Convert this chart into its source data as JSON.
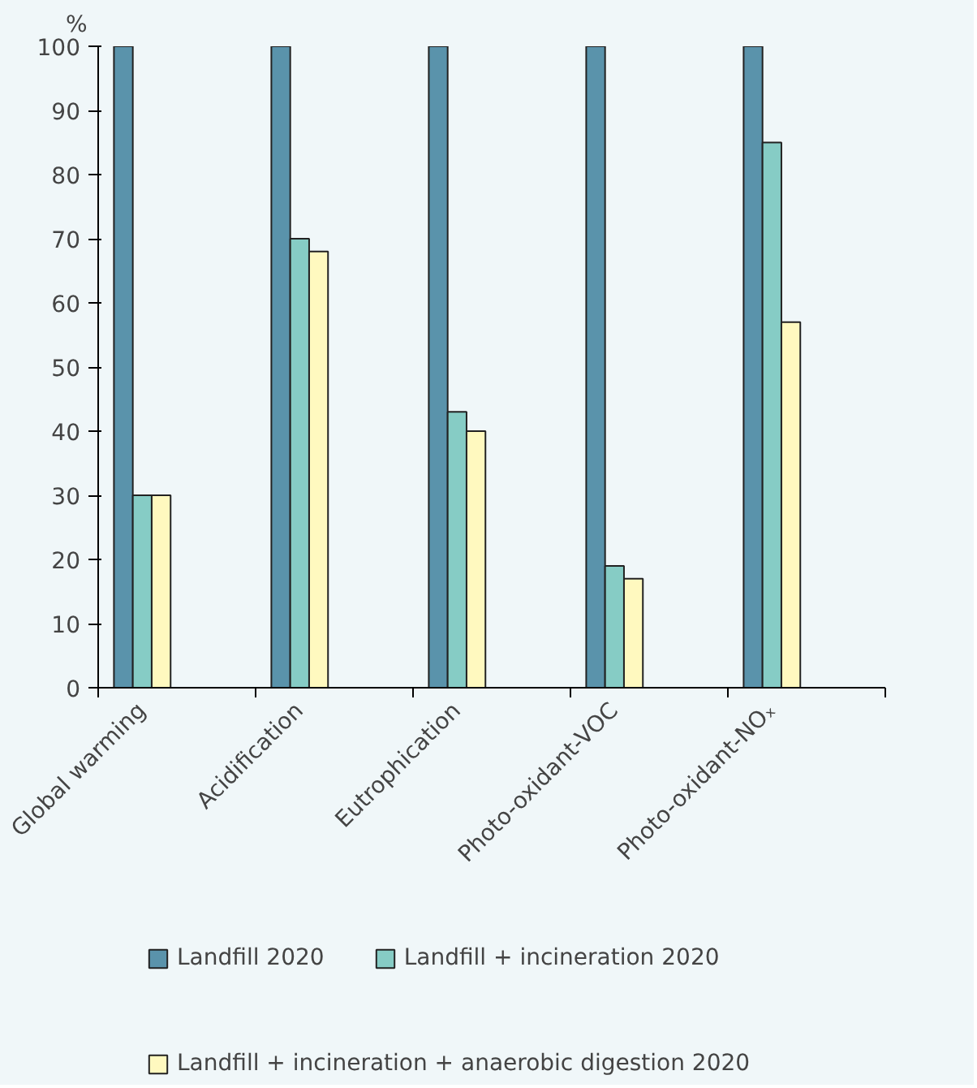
{
  "chart_data": {
    "type": "bar",
    "ylabel": "%",
    "categories": [
      "Global warming",
      "Acidification",
      "Eutrophication",
      "Photo-oxidant-VOC",
      "Photo-oxidant-NOₓ"
    ],
    "series": [
      {
        "name": "Landfill 2020",
        "color": "#5a93ab",
        "values": [
          100,
          100,
          100,
          100,
          100
        ]
      },
      {
        "name": "Landfill + incineration 2020",
        "color": "#86ccc5",
        "values": [
          30,
          70,
          43,
          19,
          85
        ]
      },
      {
        "name": "Landfill + incineration + anaerobic digestion 2020",
        "color": "#fff9bf",
        "values": [
          30,
          68,
          40,
          17,
          57
        ]
      }
    ],
    "ylim": [
      0,
      100
    ],
    "yticks": [
      0,
      10,
      20,
      30,
      40,
      50,
      60,
      70,
      80,
      90,
      100
    ],
    "grid": false,
    "legend": "bottom"
  }
}
